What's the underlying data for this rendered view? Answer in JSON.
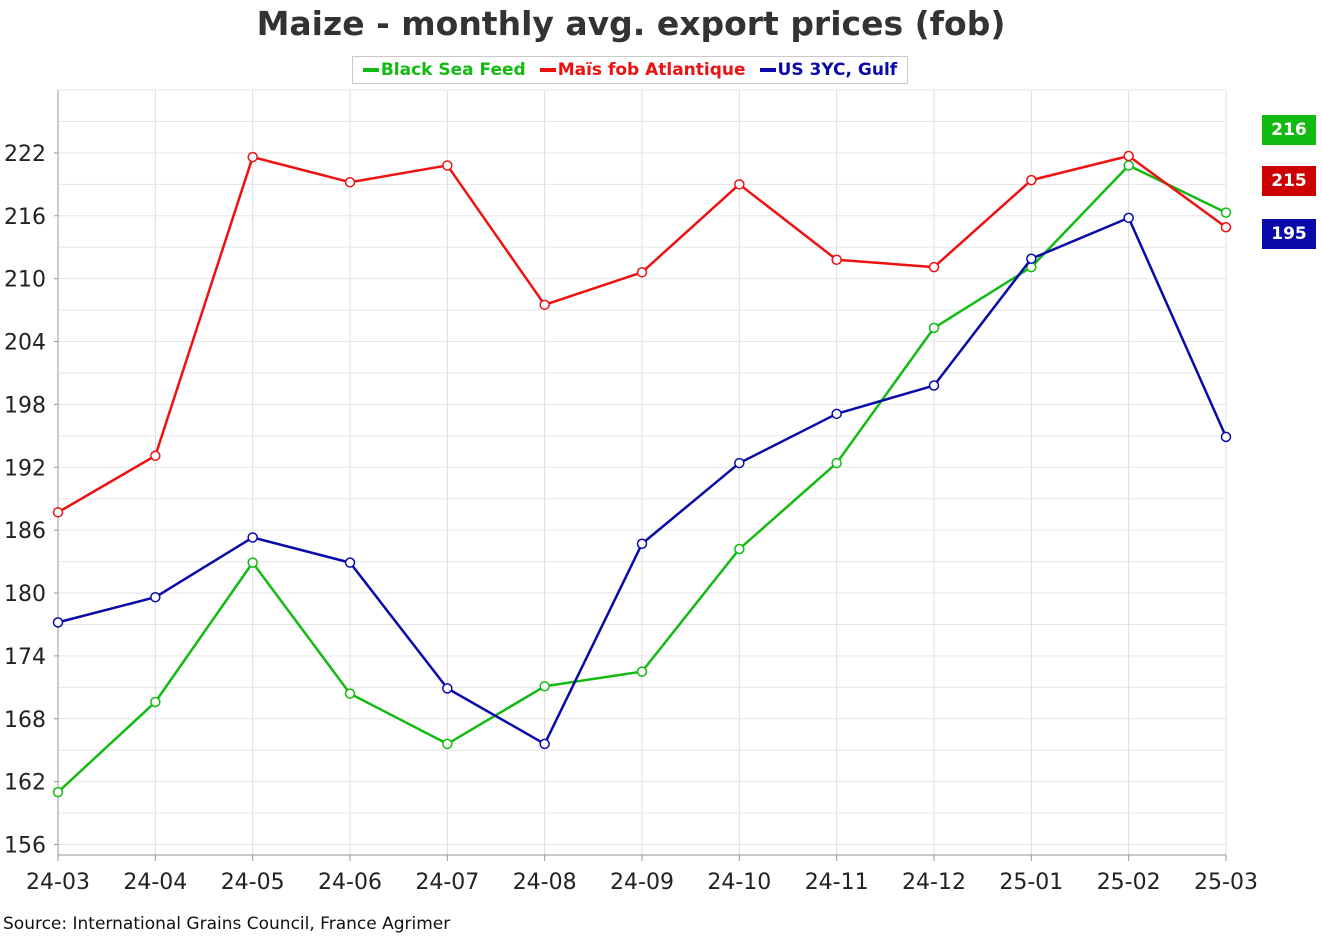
{
  "chart_data": {
    "type": "line",
    "title": "Maize - monthly avg. export prices (fob)",
    "categories": [
      "24-03",
      "24-04",
      "24-05",
      "24-06",
      "24-07",
      "24-08",
      "24-09",
      "24-10",
      "24-11",
      "24-12",
      "25-01",
      "25-02",
      "25-03"
    ],
    "series": [
      {
        "name": "Black Sea Feed",
        "color": "#11bb11",
        "values": [
          161,
          169.6,
          182.9,
          170.4,
          165.6,
          171.1,
          172.5,
          184.2,
          192.4,
          205.3,
          211.1,
          220.8,
          216.3
        ]
      },
      {
        "name": "Maïs fob Atlantique",
        "color": "#ee1111",
        "values": [
          187.7,
          193.1,
          221.6,
          219.2,
          220.8,
          207.5,
          210.6,
          219,
          211.8,
          211.1,
          219.4,
          221.7,
          214.9
        ]
      },
      {
        "name": "US 3YC, Gulf",
        "color": "#0a0aaa",
        "values": [
          177.2,
          179.6,
          185.3,
          182.9,
          170.9,
          165.6,
          184.7,
          192.4,
          197.1,
          199.8,
          211.9,
          215.8,
          194.9
        ]
      }
    ],
    "ylim": [
      155,
      228
    ],
    "yticks": [
      156,
      162,
      168,
      174,
      180,
      186,
      192,
      198,
      204,
      210,
      216,
      222
    ],
    "grid": true,
    "legend_position": "top-center",
    "last_value_badges": [
      {
        "label": "216",
        "color": "#11bb11"
      },
      {
        "label": "215",
        "color": "#cc0000"
      },
      {
        "label": "195",
        "color": "#0a0aaa"
      }
    ]
  },
  "source": "Source: International Grains Council, France Agrimer"
}
